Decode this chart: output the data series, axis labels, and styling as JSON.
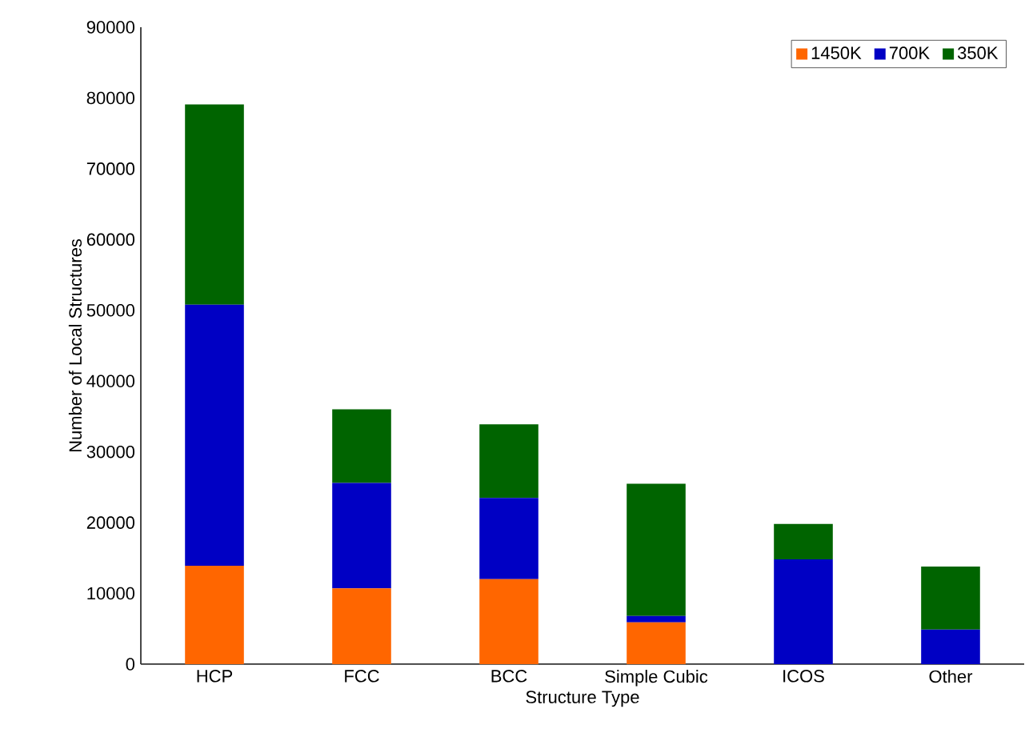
{
  "chart_data": {
    "type": "bar",
    "stacked": true,
    "xlabel": "Structure Type",
    "ylabel": "Number of Local Structures",
    "categories": [
      "HCP",
      "FCC",
      "BCC",
      "Simple Cubic",
      "ICOS",
      "Other"
    ],
    "series": [
      {
        "name": "1450K",
        "color": "#ff6600",
        "values": [
          13900,
          10700,
          12000,
          5900,
          0,
          0
        ]
      },
      {
        "name": "700K",
        "color": "#0000c4",
        "values": [
          36900,
          14900,
          11500,
          900,
          14800,
          4900
        ]
      },
      {
        "name": "350K",
        "color": "#006400",
        "values": [
          28300,
          10400,
          10400,
          18700,
          5000,
          8900
        ]
      }
    ],
    "ylim": [
      0,
      90000
    ],
    "yticks": [
      0,
      10000,
      20000,
      30000,
      40000,
      50000,
      60000,
      70000,
      80000,
      90000
    ],
    "legend": "top right",
    "grid": false
  }
}
